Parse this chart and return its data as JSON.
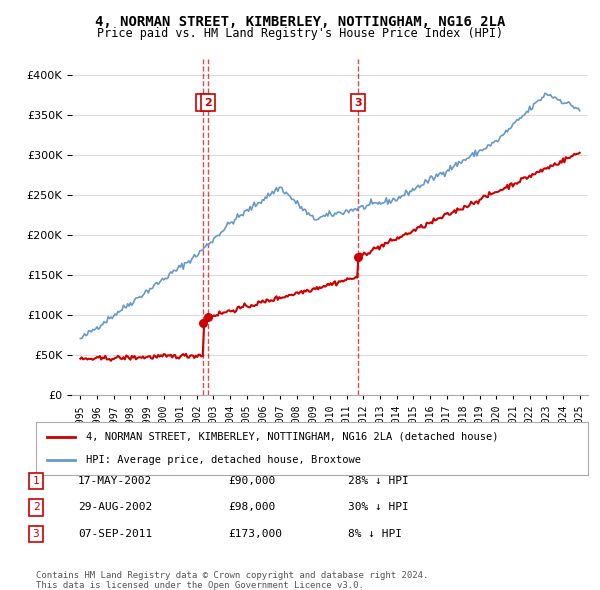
{
  "title": "4, NORMAN STREET, KIMBERLEY, NOTTINGHAM, NG16 2LA",
  "subtitle": "Price paid vs. HM Land Registry's House Price Index (HPI)",
  "legend_entry1": "4, NORMAN STREET, KIMBERLEY, NOTTINGHAM, NG16 2LA (detached house)",
  "legend_entry2": "HPI: Average price, detached house, Broxtowe",
  "footer1": "Contains HM Land Registry data © Crown copyright and database right 2024.",
  "footer2": "This data is licensed under the Open Government Licence v3.0.",
  "table": [
    {
      "num": "1",
      "date": "17-MAY-2002",
      "price": "£90,000",
      "hpi": "28% ↓ HPI"
    },
    {
      "num": "2",
      "date": "29-AUG-2002",
      "price": "£98,000",
      "hpi": "30% ↓ HPI"
    },
    {
      "num": "3",
      "date": "07-SEP-2011",
      "price": "£173,000",
      "hpi": "8% ↓ HPI"
    }
  ],
  "sale1_x": 2002.38,
  "sale1_y": 90000,
  "sale2_x": 2002.66,
  "sale2_y": 98000,
  "sale3_x": 2011.69,
  "sale3_y": 173000,
  "line_color_red": "#cc0000",
  "line_color_blue": "#6699cc",
  "background_color": "#ffffff",
  "grid_color": "#dddddd",
  "ylim": [
    0,
    420000
  ],
  "xlim": [
    1994.5,
    2025.5
  ]
}
